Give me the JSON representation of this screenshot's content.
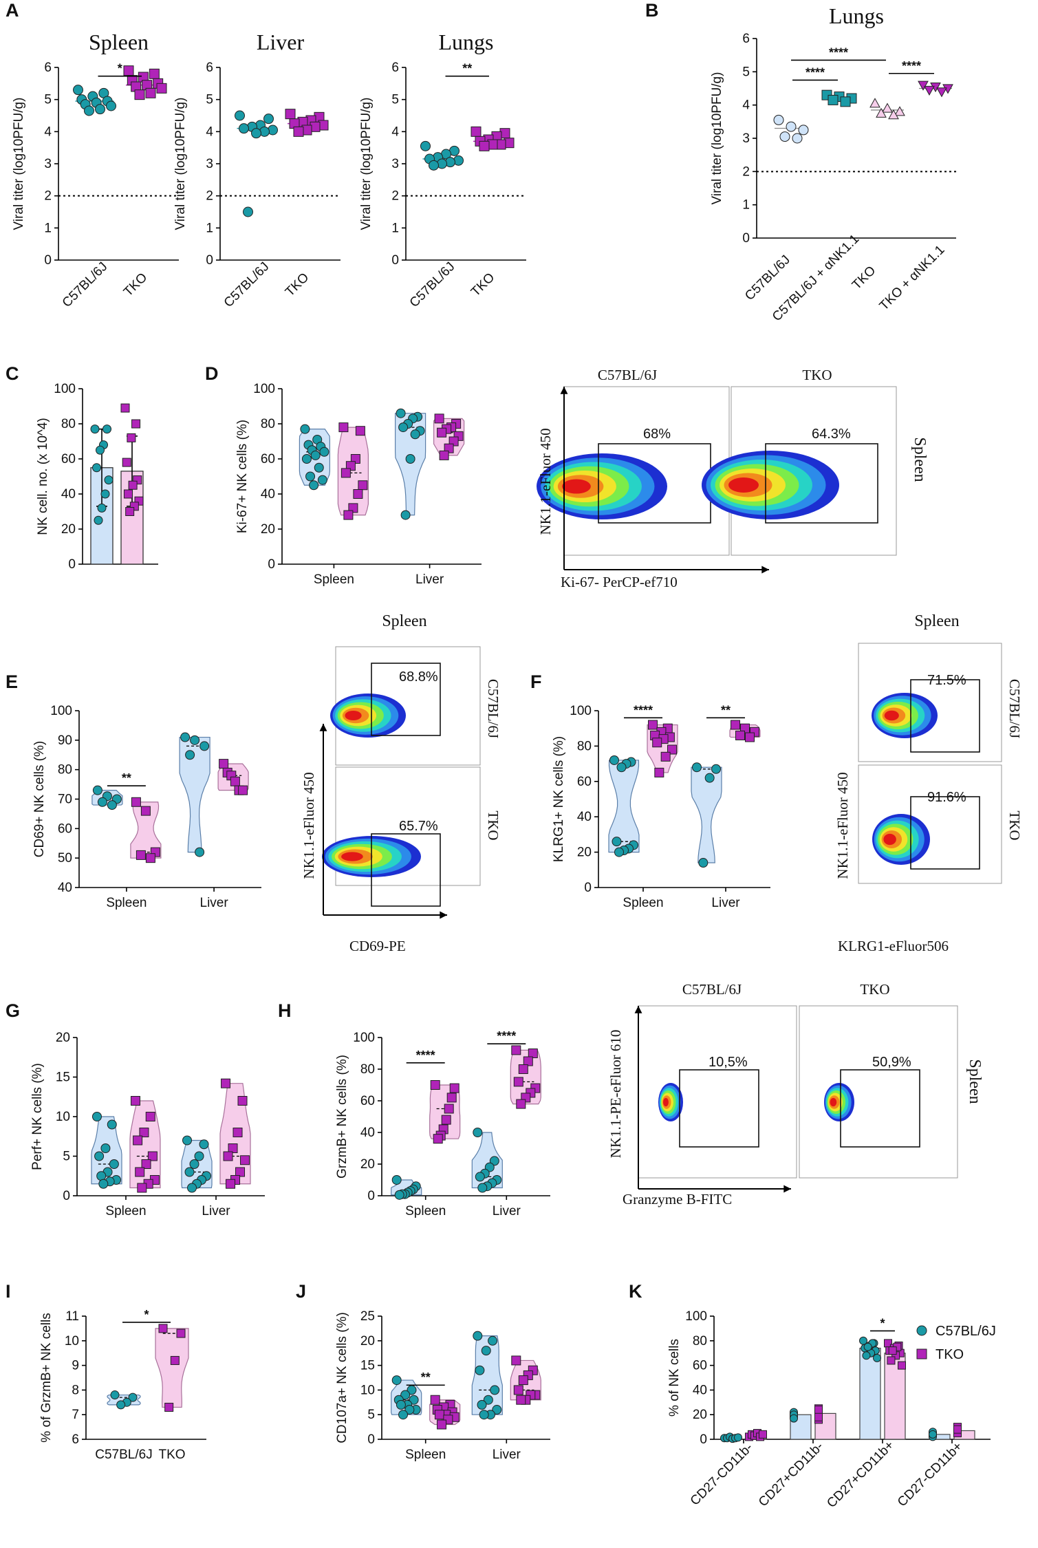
{
  "colors": {
    "teal": "#1a9aa6",
    "magenta": "#b024b8",
    "blue": "#1b82d6",
    "blue_fill": "#cfe3f8",
    "pink_fill": "#f6cdea",
    "lavender": "#c7a6de"
  },
  "panels": {
    "A": {
      "label": "A",
      "subplots": [
        {
          "title": "Spleen",
          "ylabel": "Viral titer (log10PFU/g)",
          "groups": [
            "C57BL/6J",
            "TKO"
          ],
          "detection_limit": 2,
          "sig": "*",
          "series": [
            {
              "name": "C57BL/6J",
              "median": 4.95,
              "points": [
                5.3,
                5.2,
                5.1,
                5.0,
                4.95,
                4.9,
                4.85,
                4.8,
                4.7,
                4.65
              ]
            },
            {
              "name": "TKO",
              "median": 5.45,
              "points": [
                5.9,
                5.8,
                5.7,
                5.6,
                5.5,
                5.45,
                5.4,
                5.35,
                5.2,
                5.15
              ]
            }
          ]
        },
        {
          "title": "Liver",
          "ylabel": "Viral titer (log10PFU/g)",
          "groups": [
            "C57BL/6J",
            "TKO"
          ],
          "detection_limit": 2,
          "sig": "",
          "series": [
            {
              "name": "C57BL/6J",
              "median": 4.1,
              "points": [
                4.5,
                4.4,
                4.2,
                4.15,
                4.1,
                4.05,
                4.0,
                3.95,
                1.5
              ]
            },
            {
              "name": "TKO",
              "median": 4.25,
              "points": [
                4.55,
                4.45,
                4.35,
                4.3,
                4.25,
                4.2,
                4.15,
                4.05,
                4.0
              ]
            }
          ]
        },
        {
          "title": "Lungs",
          "ylabel": "Viral titer (log10PFU/g)",
          "groups": [
            "C57BL/6J",
            "TKO"
          ],
          "detection_limit": 2,
          "sig": "**",
          "series": [
            {
              "name": "C57BL/6J",
              "median": 3.15,
              "points": [
                3.55,
                3.4,
                3.3,
                3.2,
                3.15,
                3.1,
                3.05,
                3.0,
                2.95
              ]
            },
            {
              "name": "TKO",
              "median": 3.7,
              "points": [
                4.0,
                3.95,
                3.85,
                3.75,
                3.7,
                3.65,
                3.6,
                3.6,
                3.55
              ]
            }
          ]
        }
      ]
    },
    "B": {
      "label": "B",
      "title": "Lungs",
      "ylabel": "Viral titer (log10PFU/g)",
      "groups": [
        "C57BL/6J",
        "C57BL/6J + αNK1.1",
        "TKO",
        "TKO + αNK1.1"
      ],
      "detection_limit": 2,
      "sig_labels": [
        "****",
        "****",
        "****"
      ],
      "series": [
        {
          "name": "C57BL/6J",
          "median": 3.3,
          "points": [
            3.55,
            3.35,
            3.25,
            3.05,
            3.0
          ]
        },
        {
          "name": "C57BL/6J + αNK1.1",
          "median": 4.2,
          "points": [
            4.3,
            4.25,
            4.2,
            4.15,
            4.1
          ]
        },
        {
          "name": "TKO",
          "median": 3.85,
          "points": [
            4.05,
            3.9,
            3.8,
            3.75,
            3.7
          ]
        },
        {
          "name": "TKO + αNK1.1",
          "median": 4.5,
          "points": [
            4.6,
            4.55,
            4.5,
            4.45,
            4.4
          ]
        }
      ]
    },
    "C": {
      "label": "C",
      "ylabel": "NK cell. no. (x 10^4)",
      "ylim": [
        0,
        100
      ],
      "series": [
        {
          "name": "C57BL/6J",
          "mean": 55,
          "err": 22,
          "points": [
            77,
            77,
            68,
            65,
            55,
            48,
            40,
            32,
            25
          ]
        },
        {
          "name": "TKO",
          "mean": 53,
          "err": 20,
          "points": [
            89,
            80,
            72,
            58,
            48,
            45,
            40,
            36,
            33,
            30
          ]
        }
      ]
    },
    "D": {
      "label": "D",
      "ylabel": "Ki-67+ NK cells (%)",
      "ylim": [
        0,
        100
      ],
      "categories": [
        "Spleen",
        "Liver"
      ],
      "series": [
        {
          "name": "C57BL/6J",
          "groups": [
            [
              77,
              71,
              68,
              67,
              65,
              64,
              62,
              60,
              55,
              50,
              48,
              45
            ],
            [
              86,
              84,
              83,
              80,
              78,
              76,
              74,
              60,
              28
            ]
          ]
        },
        {
          "name": "TKO",
          "groups": [
            [
              78,
              76,
              60,
              56,
              52,
              45,
              40,
              32,
              28
            ],
            [
              83,
              80,
              78,
              77,
              75,
              73,
              70,
              66,
              62
            ]
          ]
        }
      ]
    },
    "D_facs": {
      "columns": [
        "C57BL/6J",
        "TKO"
      ],
      "row_label": "Spleen",
      "xlabel": "Ki-67- PerCP-ef710",
      "ylabel": "NK1.1-eFluor 450",
      "gates": [
        "68%",
        "64.3%"
      ]
    },
    "E": {
      "label": "E",
      "ylabel": "CD69+ NK cells (%)",
      "ylim": [
        40,
        100
      ],
      "categories": [
        "Spleen",
        "Liver"
      ],
      "sig": "**",
      "series": [
        {
          "name": "C57BL/6J",
          "groups": [
            [
              73,
              71,
              70,
              69,
              68
            ],
            [
              91,
              90,
              88,
              85,
              52
            ]
          ]
        },
        {
          "name": "TKO",
          "groups": [
            [
              69,
              66,
              52,
              51,
              50
            ],
            [
              82,
              79,
              78,
              76,
              73,
              73
            ]
          ]
        }
      ]
    },
    "E_facs": {
      "title": "Spleen",
      "rows": [
        "C57BL/6J",
        "TKO"
      ],
      "xlabel": "CD69-PE",
      "ylabel": "NK1.1-eFluor 450",
      "gates": [
        "68.8%",
        "65.7%"
      ]
    },
    "F": {
      "label": "F",
      "ylabel": "KLRG1+ NK cells (%)",
      "ylim": [
        0,
        100
      ],
      "categories": [
        "Spleen",
        "Liver"
      ],
      "sig": [
        "****",
        "**"
      ],
      "series": [
        {
          "name": "C57BL/6J",
          "groups": [
            [
              72,
              71,
              70,
              68,
              26,
              24,
              22,
              21,
              20
            ],
            [
              68,
              67,
              62,
              14
            ]
          ]
        },
        {
          "name": "TKO",
          "groups": [
            [
              92,
              90,
              88,
              86,
              85,
              84,
              82,
              78,
              74,
              65
            ],
            [
              92,
              90,
              88,
              86,
              85
            ]
          ]
        }
      ]
    },
    "F_facs": {
      "title": "Spleen",
      "rows": [
        "C57BL/6J",
        "TKO"
      ],
      "xlabel": "KLRG1-eFluor506",
      "ylabel": "NK1.1-eFluor 450",
      "gates": [
        "71.5%",
        "91.6%"
      ]
    },
    "G": {
      "label": "G",
      "ylabel": "Perf+ NK cells (%)",
      "ylim": [
        0,
        20
      ],
      "categories": [
        "Spleen",
        "Liver"
      ],
      "series": [
        {
          "name": "C57BL/6J",
          "groups": [
            [
              10,
              9,
              6,
              5,
              4,
              3,
              2.5,
              2,
              1.8,
              1.5
            ],
            [
              7,
              6.5,
              5,
              4,
              3,
              2.5,
              2,
              1.5,
              1
            ]
          ]
        },
        {
          "name": "TKO",
          "groups": [
            [
              12,
              10,
              8,
              7,
              5,
              4,
              3,
              2,
              1.5,
              1
            ],
            [
              14.2,
              12,
              8,
              6,
              5,
              4.5,
              3,
              2,
              1.5
            ]
          ]
        }
      ]
    },
    "H": {
      "label": "H",
      "ylabel": "GrzmB+ NK cells (%)",
      "ylim": [
        0,
        100
      ],
      "categories": [
        "Spleen",
        "Liver"
      ],
      "sig": [
        "****",
        "****"
      ],
      "series": [
        {
          "name": "C57BL/6J",
          "groups": [
            [
              10,
              6,
              4,
              3,
              2,
              1,
              1,
              0.5
            ],
            [
              40,
              22,
              18,
              14,
              12,
              10,
              8,
              6,
              5
            ]
          ]
        },
        {
          "name": "TKO",
          "groups": [
            [
              70,
              68,
              62,
              55,
              48,
              42,
              38,
              36
            ],
            [
              92,
              90,
              85,
              80,
              72,
              68,
              65,
              62,
              58
            ]
          ]
        }
      ]
    },
    "H_facs": {
      "columns": [
        "C57BL/6J",
        "TKO"
      ],
      "row_label": "Spleen",
      "xlabel": "Granzyme B-FITC",
      "ylabel": "NK1.1-PE-eFluor 610",
      "gates": [
        "10,5%",
        "50,9%"
      ]
    },
    "I": {
      "label": "I",
      "ylabel": "% of GrzmB+ NK cells",
      "ylim": [
        6,
        11
      ],
      "groups": [
        "C57BL/6J",
        "TKO"
      ],
      "sig": "*",
      "series": [
        {
          "name": "C57BL/6J",
          "points": [
            7.8,
            7.7,
            7.5,
            7.4
          ]
        },
        {
          "name": "TKO",
          "points": [
            10.5,
            10.3,
            9.2,
            7.3
          ]
        }
      ]
    },
    "J": {
      "label": "J",
      "ylabel": "CD107a+ NK cells (%)",
      "ylim": [
        0,
        25
      ],
      "categories": [
        "Spleen",
        "Liver"
      ],
      "sig": "**",
      "series": [
        {
          "name": "C57BL/6J",
          "groups": [
            [
              12,
              10,
              9,
              8,
              8,
              7,
              7,
              6,
              6,
              5
            ],
            [
              21,
              20,
              18,
              14,
              10,
              8,
              7,
              6,
              5,
              5
            ]
          ]
        },
        {
          "name": "TKO",
          "groups": [
            [
              8,
              7,
              6.5,
              6,
              5.5,
              5,
              5,
              4.5,
              4,
              3
            ],
            [
              16,
              14,
              13,
              12,
              10,
              9,
              9,
              8,
              8
            ]
          ]
        }
      ]
    },
    "K": {
      "label": "K",
      "ylabel": "% of NK cells",
      "ylim": [
        0,
        100
      ],
      "sig": "*",
      "categories": [
        "CD27-CD11b-",
        "CD27+CD11b-",
        "CD27+CD11b+",
        "CD27-CD11b+"
      ],
      "legend": [
        "C57BL/6J",
        "TKO"
      ],
      "series": [
        {
          "name": "C57BL/6J",
          "means": [
            1,
            20,
            74,
            4
          ],
          "points": [
            [
              1,
              1,
              2,
              0.5,
              1,
              1.5
            ],
            [
              18,
              19,
              20,
              21,
              22,
              20,
              17
            ],
            [
              80,
              78,
              76,
              74,
              72,
              70,
              68,
              66,
              78,
              75
            ],
            [
              5,
              4,
              3,
              5,
              6,
              2,
              4
            ]
          ]
        },
        {
          "name": "TKO",
          "means": [
            3,
            21,
            70,
            7
          ],
          "points": [
            [
              2,
              4,
              3,
              5,
              2,
              4
            ],
            [
              16,
              19,
              22,
              25,
              20,
              24,
              18
            ],
            [
              78,
              76,
              74,
              72,
              70,
              68,
              64,
              60,
              75,
              72
            ],
            [
              9,
              8,
              7,
              6,
              5,
              10,
              8
            ]
          ]
        }
      ]
    }
  }
}
